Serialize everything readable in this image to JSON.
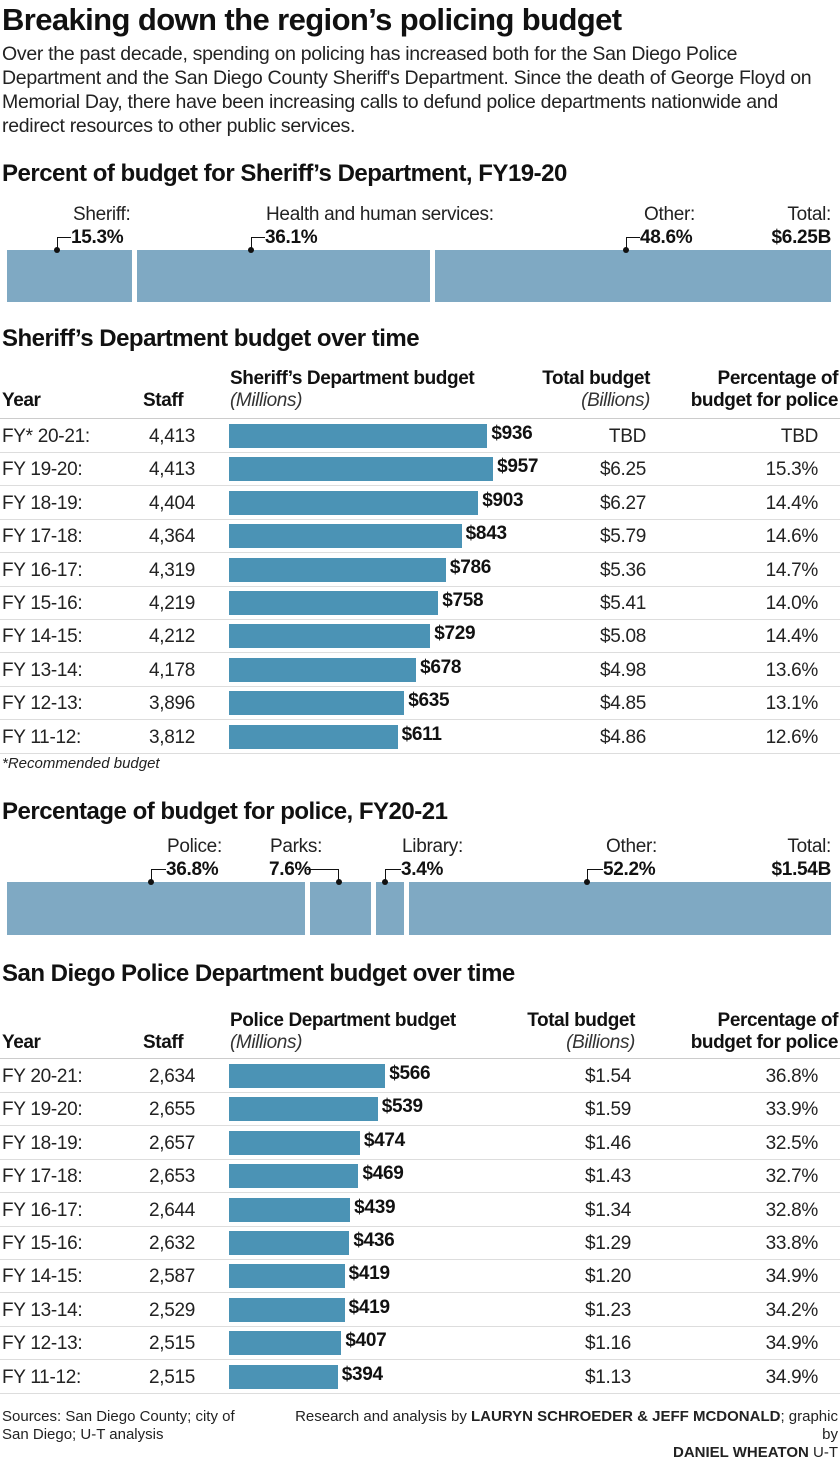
{
  "title": "Breaking down the region’s policing budget",
  "intro": "Over the past decade, spending on policing has increased both for the San Diego Police Department and the San Diego County Sheriff's Department. Since the death of George Floyd on Memorial Day, there have been increasing calls to defund police departments nationwide and redirect resources to other public services.",
  "chart_data": [
    {
      "type": "bar",
      "subtype": "stacked-100",
      "title": "Percent of budget for Sheriff’s Department, FY19-20",
      "total_label": "Total:",
      "total": "$6.25B",
      "segments": [
        {
          "label": "Sheriff:",
          "value": 15.3,
          "display": "15.3%"
        },
        {
          "label": "Health and human services:",
          "value": 36.1,
          "display": "36.1%"
        },
        {
          "label": "Other:",
          "value": 48.6,
          "display": "48.6%"
        }
      ],
      "color": "#7fa9c3"
    },
    {
      "type": "table",
      "title": "Sheriff’s Department budget over time",
      "headers": {
        "year": "Year",
        "staff": "Staff",
        "budget": "Sheriff’s Department budget",
        "budget_unit": "(Millions)",
        "total": "Total budget",
        "total_unit": "(Billions)",
        "pct1": "Percentage of",
        "pct2": "budget for police"
      },
      "rows": [
        {
          "year": "FY* 20-21:",
          "staff": "4,413",
          "budget": 936,
          "budget_label": "$936",
          "total": "TBD",
          "pct": "TBD"
        },
        {
          "year": "FY 19-20:",
          "staff": "4,413",
          "budget": 957,
          "budget_label": "$957",
          "total": "$6.25",
          "pct": "15.3%"
        },
        {
          "year": "FY 18-19:",
          "staff": "4,404",
          "budget": 903,
          "budget_label": "$903",
          "total": "$6.27",
          "pct": "14.4%"
        },
        {
          "year": "FY 17-18:",
          "staff": "4,364",
          "budget": 843,
          "budget_label": "$843",
          "total": "$5.79",
          "pct": "14.6%"
        },
        {
          "year": "FY 16-17:",
          "staff": "4,319",
          "budget": 786,
          "budget_label": "$786",
          "total": "$5.36",
          "pct": "14.7%"
        },
        {
          "year": "FY 15-16:",
          "staff": "4,219",
          "budget": 758,
          "budget_label": "$758",
          "total": "$5.41",
          "pct": "14.0%"
        },
        {
          "year": "FY 14-15:",
          "staff": "4,212",
          "budget": 729,
          "budget_label": "$729",
          "total": "$5.08",
          "pct": "14.4%"
        },
        {
          "year": "FY 13-14:",
          "staff": "4,178",
          "budget": 678,
          "budget_label": "$678",
          "total": "$4.98",
          "pct": "13.6%"
        },
        {
          "year": "FY 12-13:",
          "staff": "3,896",
          "budget": 635,
          "budget_label": "$635",
          "total": "$4.85",
          "pct": "13.1%"
        },
        {
          "year": "FY 11-12:",
          "staff": "3,812",
          "budget": 611,
          "budget_label": "$611",
          "total": "$4.86",
          "pct": "12.6%"
        }
      ],
      "note": "*Recommended budget",
      "color": "#4b93b5"
    },
    {
      "type": "bar",
      "subtype": "stacked-100",
      "title": "Percentage of budget for police, FY20-21",
      "total_label": "Total:",
      "total": "$1.54B",
      "segments": [
        {
          "label": "Police:",
          "value": 36.8,
          "display": "36.8%"
        },
        {
          "label": "Parks:",
          "value": 7.6,
          "display": "7.6%"
        },
        {
          "label": "Library:",
          "value": 3.4,
          "display": "3.4%"
        },
        {
          "label": "Other:",
          "value": 52.2,
          "display": "52.2%"
        }
      ],
      "color": "#7fa9c3"
    },
    {
      "type": "table",
      "title": "San Diego Police Department budget over time",
      "headers": {
        "year": "Year",
        "staff": "Staff",
        "budget": "Police Department budget",
        "budget_unit": "(Millions)",
        "total": "Total budget",
        "total_unit": "(Billions)",
        "pct1": "Percentage of",
        "pct2": "budget for police"
      },
      "rows": [
        {
          "year": "FY 20-21:",
          "staff": "2,634",
          "budget": 566,
          "budget_label": "$566",
          "total": "$1.54",
          "pct": "36.8%"
        },
        {
          "year": "FY 19-20:",
          "staff": "2,655",
          "budget": 539,
          "budget_label": "$539",
          "total": "$1.59",
          "pct": "33.9%"
        },
        {
          "year": "FY 18-19:",
          "staff": "2,657",
          "budget": 474,
          "budget_label": "$474",
          "total": "$1.46",
          "pct": "32.5%"
        },
        {
          "year": "FY 17-18:",
          "staff": "2,653",
          "budget": 469,
          "budget_label": "$469",
          "total": "$1.43",
          "pct": "32.7%"
        },
        {
          "year": "FY 16-17:",
          "staff": "2,644",
          "budget": 439,
          "budget_label": "$439",
          "total": "$1.34",
          "pct": "32.8%"
        },
        {
          "year": "FY 15-16:",
          "staff": "2,632",
          "budget": 436,
          "budget_label": "$436",
          "total": "$1.29",
          "pct": "33.8%"
        },
        {
          "year": "FY 14-15:",
          "staff": "2,587",
          "budget": 419,
          "budget_label": "$419",
          "total": "$1.20",
          "pct": "34.9%"
        },
        {
          "year": "FY 13-14:",
          "staff": "2,529",
          "budget": 419,
          "budget_label": "$419",
          "total": "$1.23",
          "pct": "34.2%"
        },
        {
          "year": "FY 12-13:",
          "staff": "2,515",
          "budget": 407,
          "budget_label": "$407",
          "total": "$1.16",
          "pct": "34.9%"
        },
        {
          "year": "FY 11-12:",
          "staff": "2,515",
          "budget": 394,
          "budget_label": "$394",
          "total": "$1.13",
          "pct": "34.9%"
        }
      ],
      "color": "#4b93b5"
    }
  ],
  "footer": {
    "sources": "Sources: San Diego County; city of San Diego; U-T analysis",
    "credit_prefix": "Research and analysis by ",
    "credit_names": "LAURYN SCHROEDER & JEFF MCDONALD",
    "credit_mid": "; graphic by ",
    "credit_graphic": "DANIEL WHEATON",
    "credit_suffix": " U-T"
  }
}
